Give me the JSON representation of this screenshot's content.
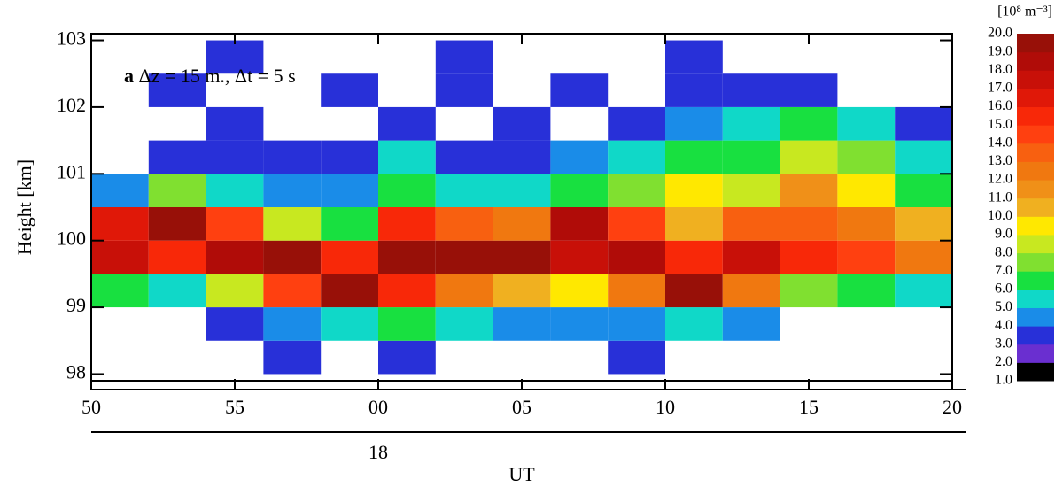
{
  "chart_data": {
    "type": "heatmap",
    "panel_label": "a",
    "annotation": "Δz = 15 m., Δt = 5 s",
    "y_label": "Height [km]",
    "x_label": "UT",
    "hour_label": {
      "value": 60,
      "label": "18"
    },
    "xlim": [
      50,
      80
    ],
    "xticks": [
      50,
      55,
      {
        "value": 60,
        "label": "00"
      },
      {
        "value": 65,
        "label": "05"
      },
      {
        "value": 70,
        "label": "10"
      },
      {
        "value": 75,
        "label": "15"
      },
      {
        "value": 80,
        "label": "20"
      }
    ],
    "ylim": [
      97.9,
      103.1
    ],
    "yticks": [
      98,
      99,
      100,
      101,
      102,
      103
    ],
    "x_bins": [
      50,
      52,
      54,
      56,
      58,
      60,
      62,
      64,
      66,
      68,
      70,
      72,
      74,
      76,
      78,
      80
    ],
    "y_bins": [
      98,
      98.5,
      99,
      99.5,
      100,
      100.5,
      101,
      101.5,
      102,
      102.5,
      103
    ],
    "z": [
      [
        null,
        null,
        null,
        3,
        null,
        3,
        null,
        null,
        null,
        3,
        null,
        null,
        null,
        null,
        null
      ],
      [
        null,
        null,
        3,
        4,
        5,
        6,
        5,
        4,
        4,
        4,
        5,
        4,
        null,
        null,
        null
      ],
      [
        6,
        5,
        8,
        14,
        19,
        15,
        12,
        10,
        9,
        12,
        19,
        12,
        7,
        6,
        5
      ],
      [
        17,
        15,
        18,
        19,
        15,
        19,
        19,
        19,
        17,
        18,
        15,
        17,
        15,
        14,
        12
      ],
      [
        16,
        19,
        14,
        8,
        6,
        15,
        13,
        12,
        18,
        14,
        10,
        13,
        13,
        12,
        10
      ],
      [
        4,
        7,
        5,
        4,
        4,
        6,
        5,
        5,
        6,
        7,
        9,
        8,
        11,
        9,
        6
      ],
      [
        null,
        3,
        3,
        3,
        3,
        5,
        3,
        3,
        4,
        5,
        6,
        6,
        8,
        7,
        5
      ],
      [
        null,
        null,
        3,
        null,
        null,
        3,
        null,
        3,
        null,
        3,
        4,
        5,
        6,
        5,
        3
      ],
      [
        null,
        3,
        null,
        null,
        3,
        null,
        3,
        null,
        3,
        null,
        3,
        3,
        3,
        null,
        null
      ],
      [
        null,
        null,
        3,
        null,
        null,
        null,
        3,
        null,
        null,
        null,
        3,
        null,
        null,
        null,
        null
      ]
    ],
    "colorbar": {
      "title": "[10⁸ m⁻³]",
      "ticks": [
        {
          "value": 1,
          "label": "1.0"
        },
        {
          "value": 2,
          "label": "2.0"
        },
        {
          "value": 3,
          "label": "3.0"
        },
        {
          "value": 4,
          "label": "4.0"
        },
        {
          "value": 5,
          "label": "5.0"
        },
        {
          "value": 6,
          "label": "6.0"
        },
        {
          "value": 7,
          "label": "7.0"
        },
        {
          "value": 8,
          "label": "8.0"
        },
        {
          "value": 9,
          "label": "9.0"
        },
        {
          "value": 10,
          "label": "10.0"
        },
        {
          "value": 11,
          "label": "11.0"
        },
        {
          "value": 12,
          "label": "12.0"
        },
        {
          "value": 13,
          "label": "13.0"
        },
        {
          "value": 14,
          "label": "14.0"
        },
        {
          "value": 15,
          "label": "15.0"
        },
        {
          "value": 16,
          "label": "16.0"
        },
        {
          "value": 17,
          "label": "17.0"
        },
        {
          "value": 18,
          "label": "18.0"
        },
        {
          "value": 19,
          "label": "19.0"
        },
        {
          "value": 20,
          "label": "20.0"
        }
      ],
      "colors": [
        "#000000",
        "#6a2fd0",
        "#2830d8",
        "#1a8ce8",
        "#10d8c8",
        "#18e040",
        "#80e030",
        "#c8e820",
        "#ffe800",
        "#f0b020",
        "#f09018",
        "#f07810",
        "#f86010",
        "#ff4010",
        "#f82808",
        "#e01808",
        "#c81008",
        "#b00c08",
        "#981008"
      ]
    }
  }
}
